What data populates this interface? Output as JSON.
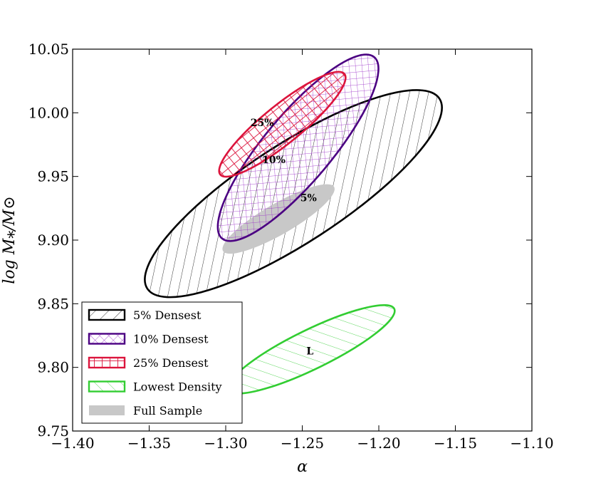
{
  "chart_data": {
    "type": "scatter",
    "subtype": "confidence-ellipses",
    "xlabel": "α",
    "ylabel": "log M⁎/M⊙",
    "xlim": [
      -1.4,
      -1.1
    ],
    "ylim": [
      9.75,
      10.05
    ],
    "xticks": [
      -1.4,
      -1.35,
      -1.3,
      -1.25,
      -1.2,
      -1.15,
      -1.1
    ],
    "yticks": [
      9.75,
      9.8,
      9.85,
      9.9,
      9.95,
      10.0,
      10.05
    ],
    "xtick_labels": [
      "−1.40",
      "−1.35",
      "−1.30",
      "−1.25",
      "−1.20",
      "−1.15",
      "−1.10"
    ],
    "ytick_labels": [
      "9.75",
      "9.80",
      "9.85",
      "9.90",
      "9.95",
      "10.00",
      "10.05"
    ],
    "series": [
      {
        "name": "5% Densest",
        "label": "5%",
        "center": [
          -1.2558,
          9.9365
        ],
        "semi_axes_data": [
          0.1138,
          0.0387
        ],
        "angle_deg": -33,
        "color": "#000000",
        "hatch": "diag-back",
        "label_pos": [
          -1.2459,
          9.9305
        ]
      },
      {
        "name": "10% Densest",
        "label": "10%",
        "center": [
          -1.2527,
          9.9725
        ],
        "semi_axes_data": [
          0.0773,
          0.0265
        ],
        "angle_deg": -50,
        "color": "#4b0082",
        "hatch": "cross",
        "label_pos": [
          -1.2686,
          9.9605
        ]
      },
      {
        "name": "25% Densest",
        "label": "25%",
        "center": [
          -1.263,
          9.991
        ],
        "semi_axes_data": [
          0.0522,
          0.0149
        ],
        "angle_deg": -39,
        "color": "#dc143c",
        "hatch": "grid",
        "label_pos": [
          -1.2762,
          9.9895
        ]
      },
      {
        "name": "Lowest Density",
        "label": "L",
        "center": [
          -1.2441,
          9.8142
        ],
        "semi_axes_data": [
          0.0603,
          0.0154
        ],
        "angle_deg": -26,
        "color": "#32cd32",
        "hatch": "diag-forward",
        "label_pos": [
          -1.245,
          9.8101
        ]
      },
      {
        "name": "Full Sample",
        "label": "",
        "center": [
          -1.2655,
          9.9166
        ],
        "semi_axes_data": [
          0.0419,
          0.0121
        ],
        "angle_deg": -30,
        "color": "#c8c8c8",
        "hatch": "none"
      }
    ],
    "legend": {
      "position": "lower-left",
      "entries": [
        "5% Densest",
        "10% Densest",
        "25% Densest",
        "Lowest Density",
        "Full Sample"
      ]
    }
  }
}
